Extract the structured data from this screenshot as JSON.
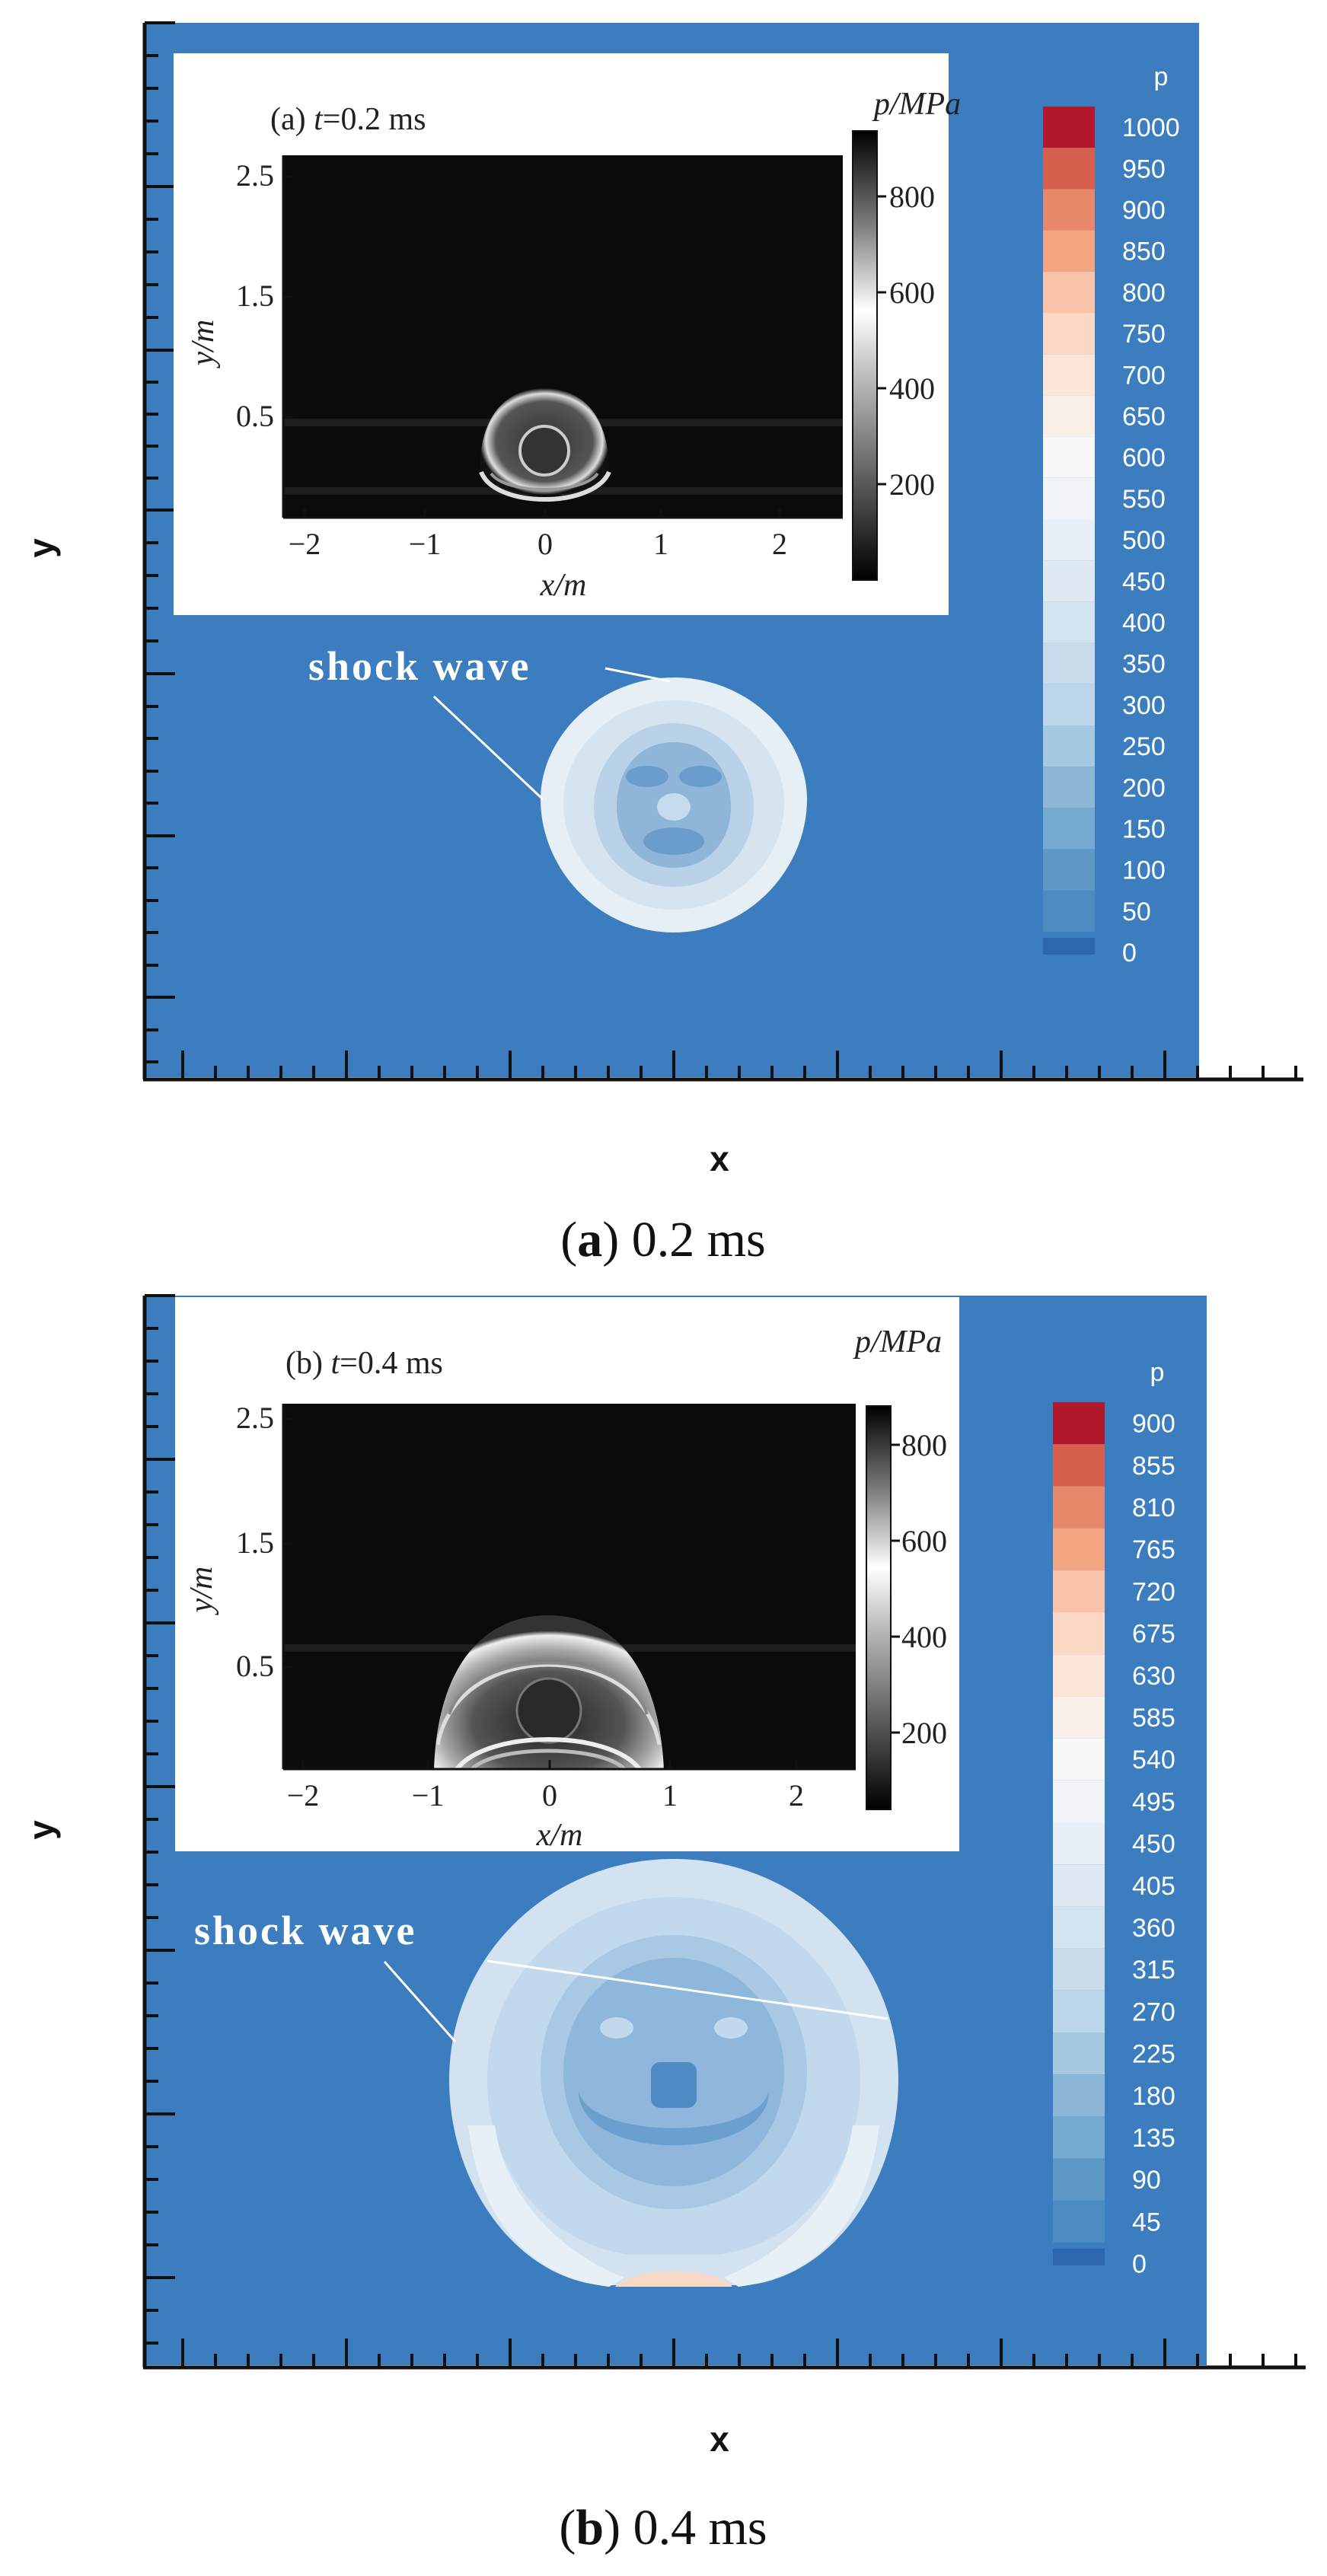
{
  "panels": [
    {
      "id": "a",
      "caption_letter": "a",
      "caption_rest": ") 0.2 ms",
      "axis_x_label": "x",
      "axis_y_label": "y",
      "annotation": "shock wave",
      "legend_title": "p",
      "legend_levels": [
        "1000",
        "950",
        "900",
        "850",
        "800",
        "750",
        "700",
        "650",
        "600",
        "550",
        "500",
        "450",
        "400",
        "350",
        "300",
        "250",
        "200",
        "150",
        "100",
        "50",
        "0"
      ],
      "inset": {
        "title_prefix": "(a) ",
        "title_t": "t",
        "title_rest": "=0.2  ms",
        "colorbar_label": "p/MPa",
        "colorbar_ticks": [
          "800",
          "600",
          "400",
          "200"
        ],
        "y_ticks": [
          "2.5",
          "1.5",
          "0.5"
        ],
        "x_ticks": [
          "−2",
          "−1",
          "0",
          "1",
          "2"
        ],
        "ylabel": "y/m",
        "xlabel": "x/m"
      }
    },
    {
      "id": "b",
      "caption_letter": "b",
      "caption_rest": ") 0.4 ms",
      "axis_x_label": "x",
      "axis_y_label": "y",
      "annotation": "shock wave",
      "legend_title": "p",
      "legend_levels": [
        "900",
        "855",
        "810",
        "765",
        "720",
        "675",
        "630",
        "585",
        "540",
        "495",
        "450",
        "405",
        "360",
        "315",
        "270",
        "225",
        "180",
        "135",
        "90",
        "45",
        "0"
      ],
      "inset": {
        "title_prefix": "(b) ",
        "title_t": "t",
        "title_rest": "=0.4 ms",
        "colorbar_label": "p/MPa",
        "colorbar_ticks": [
          "800",
          "600",
          "400",
          "200"
        ],
        "y_ticks": [
          "2.5",
          "1.5",
          "0.5"
        ],
        "x_ticks": [
          "−2",
          "−1",
          "0",
          "1",
          "2"
        ],
        "ylabel": "y/m",
        "xlabel": "x/m"
      }
    }
  ],
  "colors": {
    "background_field": "#3b7dbf",
    "legend_swatches": [
      "#b2182b",
      "#d6604d",
      "#e7886a",
      "#f4a582",
      "#f8c3a8",
      "#fbd9c4",
      "#fbe6d8",
      "#faf0ea",
      "#f7f7f7",
      "#f0f3f7",
      "#e8eff6",
      "#dfe9f3",
      "#d4e3f0",
      "#c9dcec",
      "#bdd5e8",
      "#a6c8e1",
      "#8cb7d8",
      "#74a9d0",
      "#5e99c6",
      "#4b8bc0",
      "#2c67ad"
    ]
  }
}
